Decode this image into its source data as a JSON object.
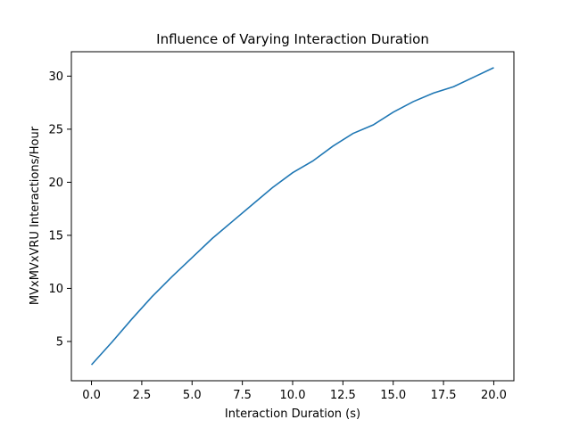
{
  "chart_data": {
    "type": "line",
    "title": "Influence of Varying Interaction Duration",
    "xlabel": "Interaction Duration (s)",
    "ylabel": "MVxMVxVRU Interactions/Hour",
    "xlim": [
      -1.0,
      21.0
    ],
    "ylim": [
      1.3,
      32.3
    ],
    "grid": false,
    "xticks": [
      0.0,
      2.5,
      5.0,
      7.5,
      10.0,
      12.5,
      15.0,
      17.5,
      20.0
    ],
    "xtick_labels": [
      "0.0",
      "2.5",
      "5.0",
      "7.5",
      "10.0",
      "12.5",
      "15.0",
      "17.5",
      "20.0"
    ],
    "yticks": [
      5,
      10,
      15,
      20,
      25,
      30
    ],
    "ytick_labels": [
      "5",
      "10",
      "15",
      "20",
      "25",
      "30"
    ],
    "line_color": "#1f77b4",
    "series": [
      {
        "x": [
          0,
          1,
          2,
          3,
          4,
          5,
          6,
          7,
          8,
          9,
          10,
          11,
          12,
          13,
          14,
          15,
          16,
          17,
          18,
          19,
          20
        ],
        "y": [
          2.8,
          4.9,
          7.1,
          9.2,
          11.1,
          12.9,
          14.7,
          16.3,
          17.9,
          19.5,
          20.9,
          22.0,
          23.4,
          24.6,
          25.4,
          26.6,
          27.6,
          28.4,
          29.0,
          29.9,
          30.8
        ]
      }
    ]
  }
}
